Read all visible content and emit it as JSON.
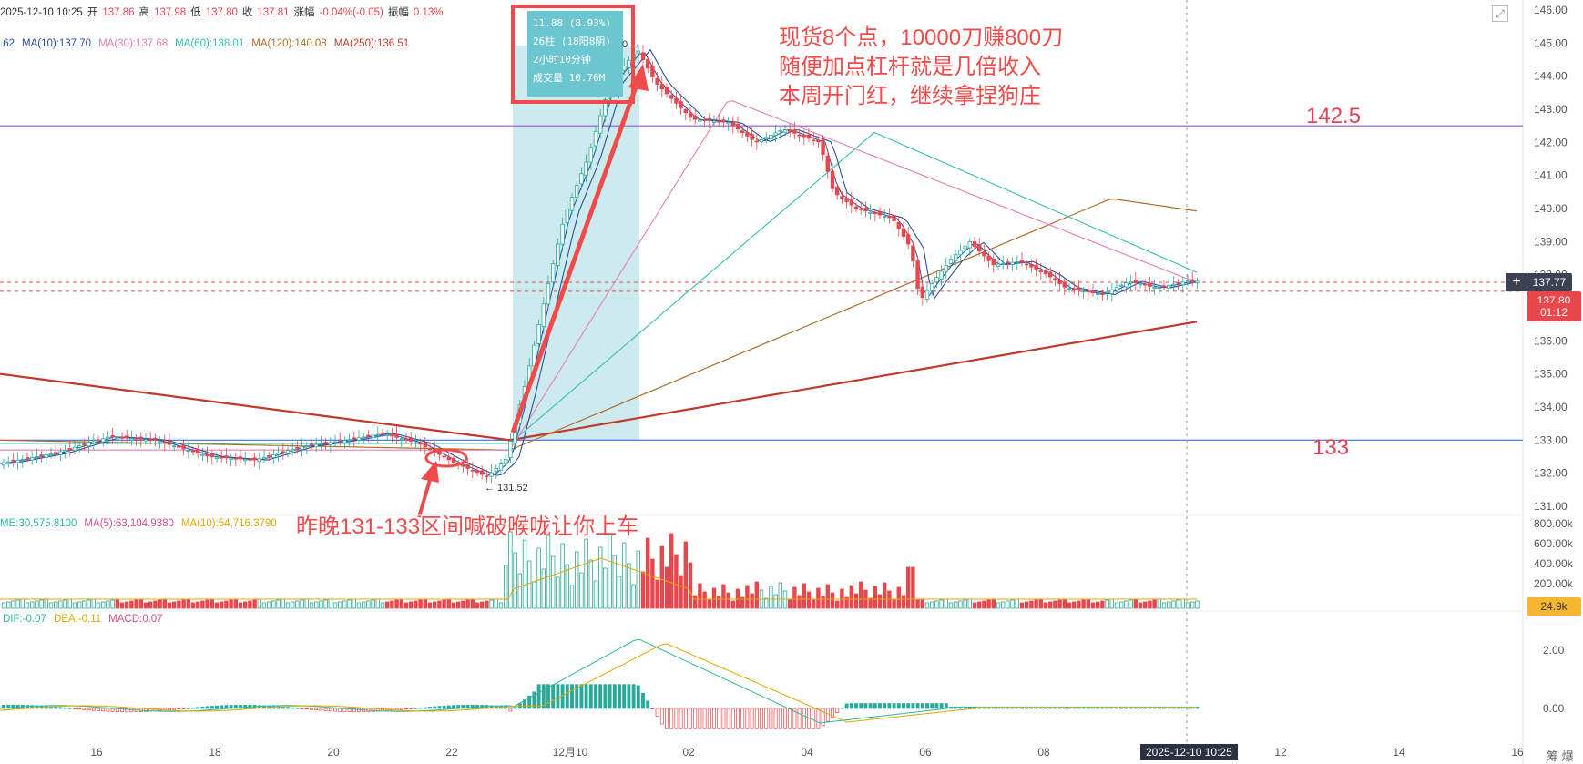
{
  "info": {
    "datetime": "2025-12-10 10:25",
    "open_label": "开",
    "open": "137.86",
    "high_label": "高",
    "high": "137.98",
    "low_label": "低",
    "low": "137.80",
    "close_label": "收",
    "close": "137.81",
    "change_label": "涨幅",
    "change": "-0.04%(-0.05)",
    "amp_label": "振幅",
    "amp": "0.13%"
  },
  "ma_legend": [
    {
      "text": ".62",
      "color": "#1f4fb0"
    },
    {
      "text": "MA(10):137.70",
      "color": "#2a4f9a"
    },
    {
      "text": "MA(30):137.68",
      "color": "#e57fb0"
    },
    {
      "text": "MA(60):138.01",
      "color": "#36bfb3"
    },
    {
      "text": "MA(120):140.08",
      "color": "#b06a2a"
    },
    {
      "text": "MA(250):136.51",
      "color": "#c0392b"
    }
  ],
  "vol_legend": [
    {
      "text": "ME:30,575.8100",
      "color": "#2db8a6"
    },
    {
      "text": "MA(5):63,104.9380",
      "color": "#d84d8a"
    },
    {
      "text": "MA(10):54,716.3790",
      "color": "#e0a800"
    }
  ],
  "macd_legend": [
    {
      "text": "DIF:-0.07",
      "color": "#2db8a6"
    },
    {
      "text": "DEA:-0.11",
      "color": "#e0a800"
    },
    {
      "text": "MACD:0.07",
      "color": "#d84d8a"
    }
  ],
  "tooltip": {
    "line1": "11.88 (8.93%)",
    "line2": "26柱 (18阳8阴)",
    "line3": "2小时10分钟",
    "line4": "成交量 10.76M"
  },
  "annotations": {
    "main_l1": "现货8个点，10000刀赚800刀",
    "main_l2": "随便加点杠杆就是几倍收入",
    "main_l3": "本周开门红，继续拿捏狗庄",
    "bottom": "昨晚131-133区间喊破喉咙让你上车",
    "level_high": "142.5",
    "level_low": "133",
    "low_point": "← 131.52",
    "high_point_fragment": "0 →"
  },
  "tags": {
    "price1": "137.77",
    "price2": "137.80",
    "countdown": "01:12",
    "vol_tag": "24.9k",
    "crosshair_time": "2025-12-10 10:25",
    "corner": "筹  爆",
    "plus": "+",
    "fullscreen": "⤢"
  },
  "colors": {
    "up": "#2aa89a",
    "down": "#e8474c",
    "ma10": "#2a4f9a",
    "ma30": "#e57fb0",
    "ma60": "#36bfb3",
    "ma120": "#b06a2a",
    "ma250": "#c0392b",
    "level_high": "#9c4fd6",
    "level_low": "#3b6fd4",
    "annotation": "#f04b4b",
    "highlight": "#cdebef"
  },
  "chart_data": {
    "type": "candlestick",
    "price_axis": {
      "min": 131.0,
      "max": 146.0,
      "ticks": [
        "146.00",
        "145.00",
        "144.00",
        "143.00",
        "142.00",
        "141.00",
        "140.00",
        "139.00",
        "138.00",
        "137.00",
        "136.00",
        "135.00",
        "134.00",
        "133.00",
        "132.00",
        "131.00"
      ]
    },
    "volume_axis": {
      "ticks": [
        "800.00k",
        "600.00k",
        "400.00k",
        "200.00k"
      ]
    },
    "macd_axis": {
      "ticks": [
        "2.00",
        "0.00"
      ]
    },
    "x_ticks": [
      "16",
      "18",
      "20",
      "22",
      "12月10",
      "02",
      "04",
      "06",
      "08",
      "12",
      "14",
      "16"
    ],
    "levels": [
      142.5,
      133.0
    ],
    "series_key_points": [
      {
        "label": "start",
        "price": 132.3
      },
      {
        "label": "low",
        "price": 131.52
      },
      {
        "label": "high",
        "price": 145.0
      },
      {
        "label": "mid",
        "price": 142.3
      },
      {
        "label": "late",
        "price": 138.5
      },
      {
        "label": "last",
        "price": 137.81
      }
    ]
  }
}
